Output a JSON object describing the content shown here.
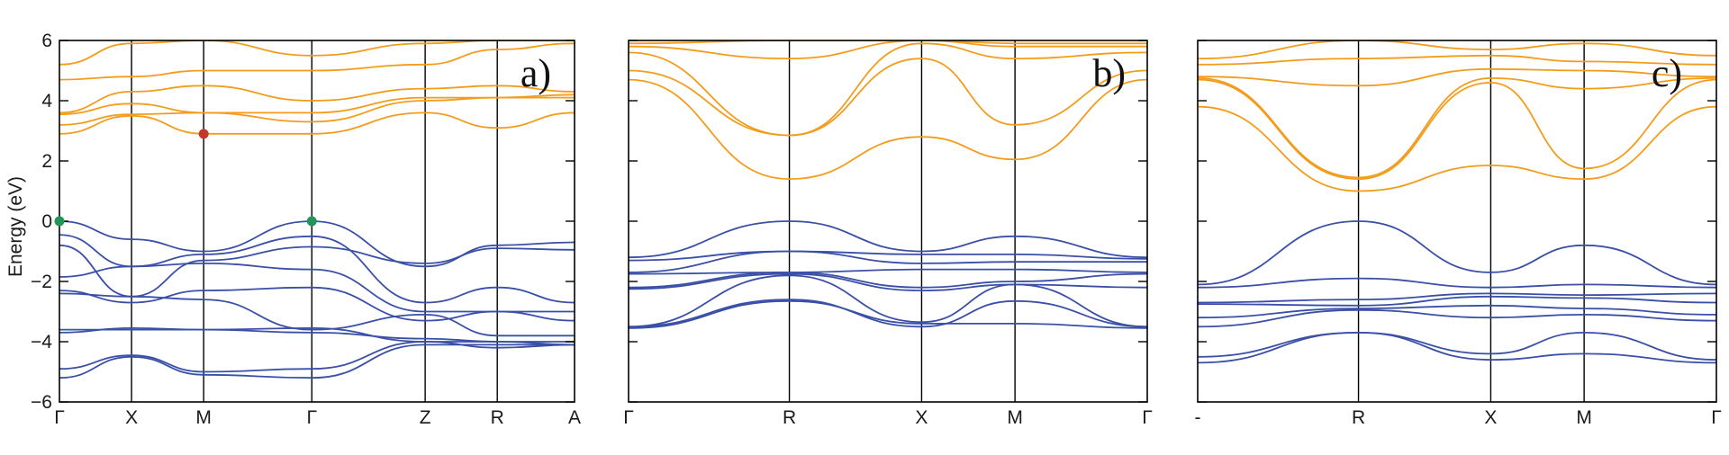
{
  "colors": {
    "valence": "#3a4fa6",
    "conduction": "#f39c1c",
    "vbm_marker": "#23955a",
    "cbm_marker": "#c0392b",
    "axis": "#000000"
  },
  "chart_data": [
    {
      "type": "line",
      "panel_label": "a)",
      "ylabel": "Energy (eV)",
      "ylim": [
        -6,
        6
      ],
      "yticks": [
        -6,
        -4,
        -2,
        0,
        2,
        4,
        6
      ],
      "ytick_labels": [
        "−6",
        "−4",
        "−2",
        "0",
        "2",
        "4",
        "6"
      ],
      "x_labels": [
        "Γ",
        "X",
        "M",
        "Γ",
        "Z",
        "R",
        "A"
      ],
      "x_positions": [
        0,
        0.14,
        0.28,
        0.49,
        0.71,
        0.85,
        1.0
      ],
      "markers": [
        {
          "x": 0,
          "y": 0.0,
          "kind": "vbm"
        },
        {
          "x": 0.49,
          "y": 0.0,
          "kind": "vbm"
        },
        {
          "x": 0.28,
          "y": 2.9,
          "kind": "cbm"
        }
      ],
      "series": [
        {
          "band": "valence",
          "x": [
            0,
            0.14,
            0.28,
            0.49,
            0.71,
            0.85,
            1.0
          ],
          "y": [
            0.0,
            -0.6,
            -1.0,
            0.0,
            -1.5,
            -0.8,
            -0.7
          ]
        },
        {
          "band": "valence",
          "x": [
            0,
            0.14,
            0.28,
            0.49,
            0.71,
            0.85,
            1.0
          ],
          "y": [
            -0.45,
            -1.5,
            -1.1,
            -0.5,
            -2.7,
            -2.2,
            -2.7
          ]
        },
        {
          "band": "valence",
          "x": [
            0,
            0.14,
            0.28,
            0.49,
            0.71,
            0.85,
            1.0
          ],
          "y": [
            -0.8,
            -2.5,
            -1.3,
            -0.85,
            -1.4,
            -0.9,
            -0.95
          ]
        },
        {
          "band": "valence",
          "x": [
            0,
            0.14,
            0.28,
            0.49,
            0.71,
            0.85,
            1.0
          ],
          "y": [
            -1.85,
            -1.5,
            -1.4,
            -1.6,
            -3.0,
            -3.0,
            -3.0
          ]
        },
        {
          "band": "valence",
          "x": [
            0,
            0.14,
            0.28,
            0.49,
            0.71,
            0.85,
            1.0
          ],
          "y": [
            -2.3,
            -2.7,
            -2.3,
            -2.2,
            -3.3,
            -3.0,
            -3.3
          ]
        },
        {
          "band": "valence",
          "x": [
            0,
            0.14,
            0.28,
            0.49,
            0.71,
            0.85,
            1.0
          ],
          "y": [
            -2.4,
            -2.5,
            -2.6,
            -3.6,
            -3.1,
            -3.8,
            -3.8
          ]
        },
        {
          "band": "valence",
          "x": [
            0,
            0.14,
            0.28,
            0.49,
            0.71,
            0.85,
            1.0
          ],
          "y": [
            -3.6,
            -3.6,
            -3.6,
            -3.7,
            -3.9,
            -4.0,
            -4.1
          ]
        },
        {
          "band": "valence",
          "x": [
            0,
            0.14,
            0.28,
            0.49,
            0.71,
            0.85,
            1.0
          ],
          "y": [
            -3.7,
            -3.55,
            -3.6,
            -3.55,
            -4.0,
            -4.2,
            -4.1
          ]
        },
        {
          "band": "valence",
          "x": [
            0,
            0.14,
            0.28,
            0.49,
            0.71,
            0.85,
            1.0
          ],
          "y": [
            -4.9,
            -4.45,
            -5.0,
            -4.9,
            -4.0,
            -4.0,
            -4.0
          ]
        },
        {
          "band": "valence",
          "x": [
            0,
            0.14,
            0.28,
            0.49,
            0.71,
            0.85,
            1.0
          ],
          "y": [
            -5.2,
            -4.5,
            -5.1,
            -5.2,
            -4.1,
            -4.1,
            -4.1
          ]
        },
        {
          "band": "conduction",
          "x": [
            0,
            0.14,
            0.28,
            0.49,
            0.71,
            0.85,
            1.0
          ],
          "y": [
            2.9,
            3.5,
            2.9,
            2.9,
            3.6,
            3.1,
            3.6
          ]
        },
        {
          "band": "conduction",
          "x": [
            0,
            0.14,
            0.28,
            0.49,
            0.71,
            0.85,
            1.0
          ],
          "y": [
            3.2,
            3.55,
            3.6,
            3.3,
            4.0,
            4.1,
            4.2
          ]
        },
        {
          "band": "conduction",
          "x": [
            0,
            0.14,
            0.28,
            0.49,
            0.71,
            0.85,
            1.0
          ],
          "y": [
            3.55,
            3.9,
            3.6,
            3.6,
            4.1,
            4.1,
            4.1
          ]
        },
        {
          "band": "conduction",
          "x": [
            0,
            0.14,
            0.28,
            0.49,
            0.71,
            0.85,
            1.0
          ],
          "y": [
            3.6,
            4.3,
            4.5,
            4.0,
            4.4,
            4.5,
            4.3
          ]
        },
        {
          "band": "conduction",
          "x": [
            0,
            0.14,
            0.28,
            0.49,
            0.71,
            0.85,
            1.0
          ],
          "y": [
            4.7,
            4.8,
            5.0,
            5.0,
            5.2,
            5.7,
            5.9
          ]
        },
        {
          "band": "conduction",
          "x": [
            0,
            0.14,
            0.28,
            0.49,
            0.71,
            0.85,
            1.0
          ],
          "y": [
            5.2,
            5.9,
            6.0,
            5.5,
            5.9,
            6.0,
            6.0
          ]
        }
      ]
    },
    {
      "type": "line",
      "panel_label": "b)",
      "ylim": [
        -6,
        6
      ],
      "yticks": [
        -6,
        -4,
        -2,
        0,
        2,
        4,
        6
      ],
      "x_labels": [
        "Γ",
        "R",
        "X",
        "M",
        "Γ"
      ],
      "x_positions": [
        0,
        0.31,
        0.565,
        0.745,
        1.0
      ],
      "series": [
        {
          "band": "valence",
          "x": [
            0,
            0.31,
            0.565,
            0.745,
            1.0
          ],
          "y": [
            -1.2,
            0.0,
            -1.0,
            -0.5,
            -1.2
          ]
        },
        {
          "band": "valence",
          "x": [
            0,
            0.31,
            0.565,
            0.745,
            1.0
          ],
          "y": [
            -1.3,
            -1.0,
            -1.1,
            -1.1,
            -1.25
          ]
        },
        {
          "band": "valence",
          "x": [
            0,
            0.31,
            0.565,
            0.745,
            1.0
          ],
          "y": [
            -1.7,
            -1.0,
            -1.4,
            -1.35,
            -1.35
          ]
        },
        {
          "band": "valence",
          "x": [
            0,
            0.31,
            0.565,
            0.745,
            1.0
          ],
          "y": [
            -1.75,
            -1.7,
            -1.6,
            -1.6,
            -1.7
          ]
        },
        {
          "band": "valence",
          "x": [
            0,
            0.31,
            0.565,
            0.745,
            1.0
          ],
          "y": [
            -2.2,
            -1.7,
            -2.2,
            -2.0,
            -1.75
          ]
        },
        {
          "band": "valence",
          "x": [
            0,
            0.31,
            0.565,
            0.745,
            1.0
          ],
          "y": [
            -2.25,
            -1.75,
            -2.3,
            -2.1,
            -2.2
          ]
        },
        {
          "band": "valence",
          "x": [
            0,
            0.31,
            0.565,
            0.745,
            1.0
          ],
          "y": [
            -3.5,
            -1.8,
            -3.35,
            -2.1,
            -3.5
          ]
        },
        {
          "band": "valence",
          "x": [
            0,
            0.31,
            0.565,
            0.745,
            1.0
          ],
          "y": [
            -3.5,
            -2.6,
            -3.5,
            -2.65,
            -3.5
          ]
        },
        {
          "band": "valence",
          "x": [
            0,
            0.31,
            0.565,
            0.745,
            1.0
          ],
          "y": [
            -3.55,
            -2.65,
            -3.4,
            -3.4,
            -3.55
          ]
        },
        {
          "band": "conduction",
          "x": [
            0,
            0.31,
            0.565,
            0.745,
            1.0
          ],
          "y": [
            4.7,
            1.4,
            2.8,
            2.05,
            4.7
          ]
        },
        {
          "band": "conduction",
          "x": [
            0,
            0.31,
            0.565,
            0.745,
            1.0
          ],
          "y": [
            5.0,
            2.85,
            5.4,
            3.2,
            5.0
          ]
        },
        {
          "band": "conduction",
          "x": [
            0,
            0.31,
            0.565,
            0.745,
            1.0
          ],
          "y": [
            5.6,
            2.85,
            5.9,
            5.4,
            5.6
          ]
        },
        {
          "band": "conduction",
          "x": [
            0,
            0.31,
            0.565,
            0.745,
            1.0
          ],
          "y": [
            5.8,
            5.4,
            6.0,
            5.8,
            5.8
          ]
        },
        {
          "band": "conduction",
          "x": [
            0,
            0.31,
            0.565,
            0.745,
            1.0
          ],
          "y": [
            5.9,
            6.0,
            6.0,
            5.9,
            5.9
          ]
        }
      ]
    },
    {
      "type": "line",
      "panel_label": "c)",
      "ylim": [
        -6,
        6
      ],
      "yticks": [
        -6,
        -4,
        -2,
        0,
        2,
        4,
        6
      ],
      "x_labels": [
        "-",
        "R",
        "X",
        "M",
        "Γ"
      ],
      "x_positions": [
        0,
        0.31,
        0.565,
        0.745,
        1.0
      ],
      "series": [
        {
          "band": "valence",
          "x": [
            0,
            0.31,
            0.565,
            0.745,
            1.0
          ],
          "y": [
            -2.1,
            0.0,
            -1.7,
            -0.8,
            -2.1
          ]
        },
        {
          "band": "valence",
          "x": [
            0,
            0.31,
            0.565,
            0.745,
            1.0
          ],
          "y": [
            -2.2,
            -1.9,
            -2.2,
            -2.1,
            -2.2
          ]
        },
        {
          "band": "valence",
          "x": [
            0,
            0.31,
            0.565,
            0.745,
            1.0
          ],
          "y": [
            -2.7,
            -2.6,
            -2.4,
            -2.45,
            -2.4
          ]
        },
        {
          "band": "valence",
          "x": [
            0,
            0.31,
            0.565,
            0.745,
            1.0
          ],
          "y": [
            -2.75,
            -2.8,
            -2.5,
            -2.55,
            -2.7
          ]
        },
        {
          "band": "valence",
          "x": [
            0,
            0.31,
            0.565,
            0.745,
            1.0
          ],
          "y": [
            -3.2,
            -2.9,
            -2.8,
            -2.9,
            -3.1
          ]
        },
        {
          "band": "valence",
          "x": [
            0,
            0.31,
            0.565,
            0.745,
            1.0
          ],
          "y": [
            -3.5,
            -2.95,
            -3.2,
            -3.1,
            -3.3
          ]
        },
        {
          "band": "valence",
          "x": [
            0,
            0.31,
            0.565,
            0.745,
            1.0
          ],
          "y": [
            -4.5,
            -3.7,
            -4.4,
            -3.7,
            -4.6
          ]
        },
        {
          "band": "valence",
          "x": [
            0,
            0.31,
            0.565,
            0.745,
            1.0
          ],
          "y": [
            -4.7,
            -3.7,
            -4.6,
            -4.4,
            -4.7
          ]
        },
        {
          "band": "conduction",
          "x": [
            0,
            0.31,
            0.565,
            0.745,
            1.0
          ],
          "y": [
            3.8,
            1.0,
            1.85,
            1.4,
            3.8
          ]
        },
        {
          "band": "conduction",
          "x": [
            0,
            0.31,
            0.565,
            0.745,
            1.0
          ],
          "y": [
            4.7,
            1.4,
            4.6,
            1.75,
            4.7
          ]
        },
        {
          "band": "conduction",
          "x": [
            0,
            0.31,
            0.565,
            0.745,
            1.0
          ],
          "y": [
            4.75,
            1.45,
            4.75,
            4.4,
            4.75
          ]
        },
        {
          "band": "conduction",
          "x": [
            0,
            0.31,
            0.565,
            0.745,
            1.0
          ],
          "y": [
            4.8,
            4.5,
            5.05,
            5.0,
            4.8
          ]
        },
        {
          "band": "conduction",
          "x": [
            0,
            0.31,
            0.565,
            0.745,
            1.0
          ],
          "y": [
            5.2,
            5.4,
            5.5,
            5.3,
            5.2
          ]
        },
        {
          "band": "conduction",
          "x": [
            0,
            0.31,
            0.565,
            0.745,
            1.0
          ],
          "y": [
            5.4,
            6.0,
            5.7,
            5.9,
            5.5
          ]
        }
      ]
    }
  ]
}
